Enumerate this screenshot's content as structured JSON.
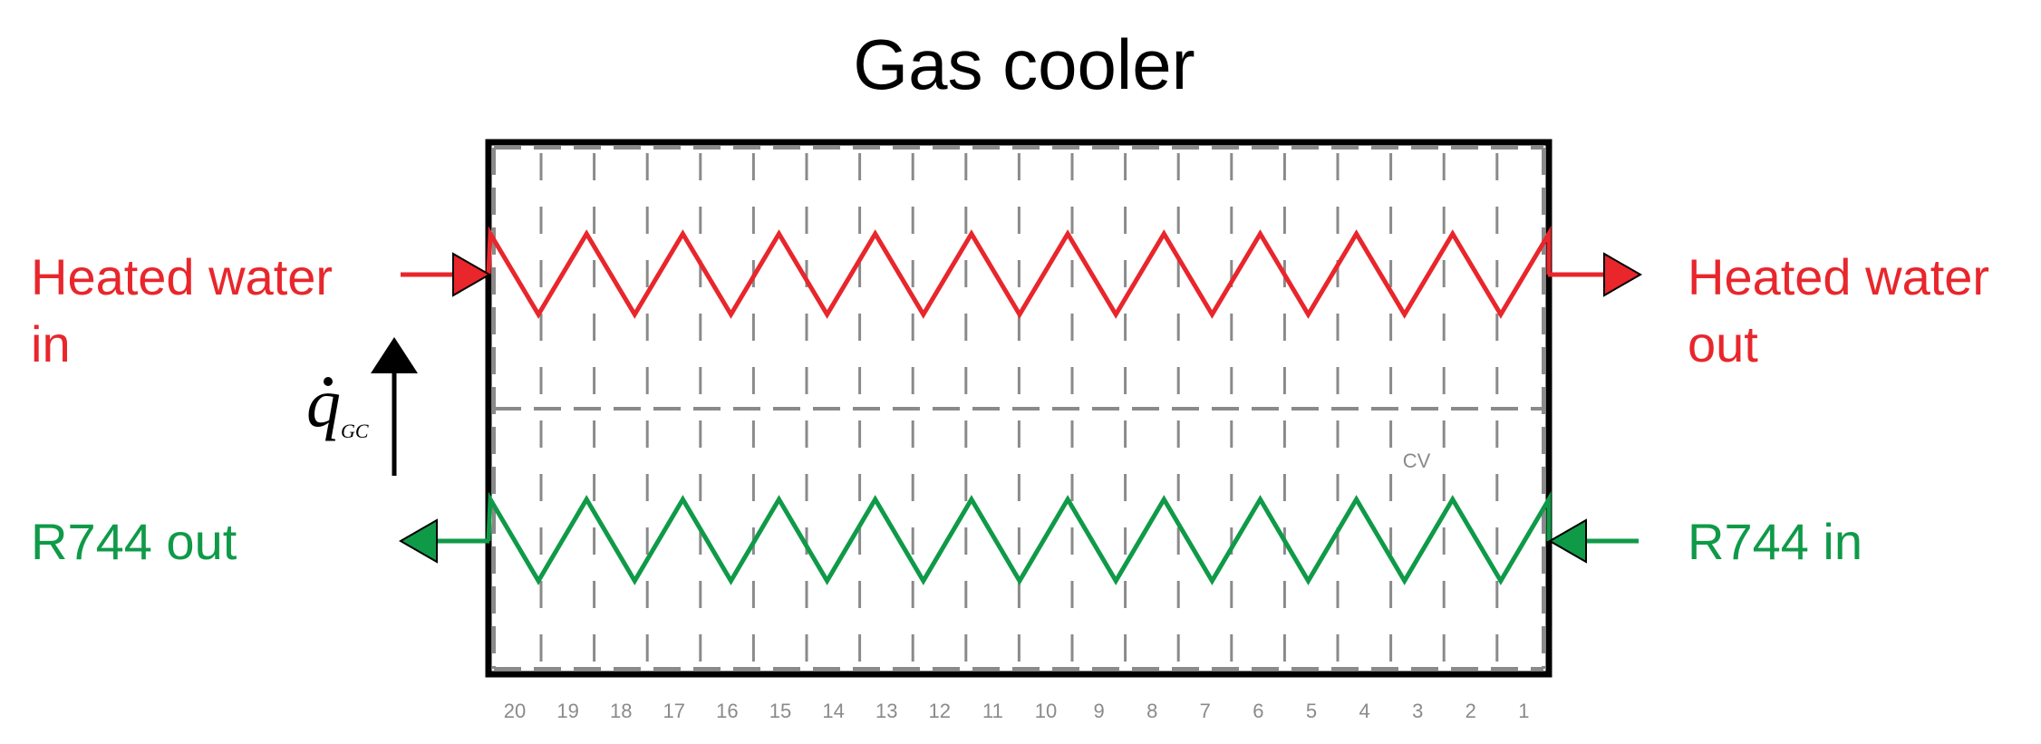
{
  "title": "Gas cooler",
  "water": {
    "in_line1": "Heated water",
    "in_line2": "in",
    "out_line1": "Heated water",
    "out_line2": "out",
    "color": "#e8262b"
  },
  "refrigerant": {
    "out_label": "R744 out",
    "in_label": "R744 in",
    "color": "#0f9a48"
  },
  "heat_flow": {
    "symbol": "q",
    "subscript": "GC"
  },
  "control_volume_label": "CV",
  "cell_numbers": [
    "20",
    "19",
    "18",
    "17",
    "16",
    "15",
    "14",
    "13",
    "12",
    "11",
    "10",
    "9",
    "8",
    "7",
    "6",
    "5",
    "4",
    "3",
    "2",
    "1"
  ],
  "colors": {
    "frame": "#000000",
    "dash": "#8a8a8a"
  }
}
